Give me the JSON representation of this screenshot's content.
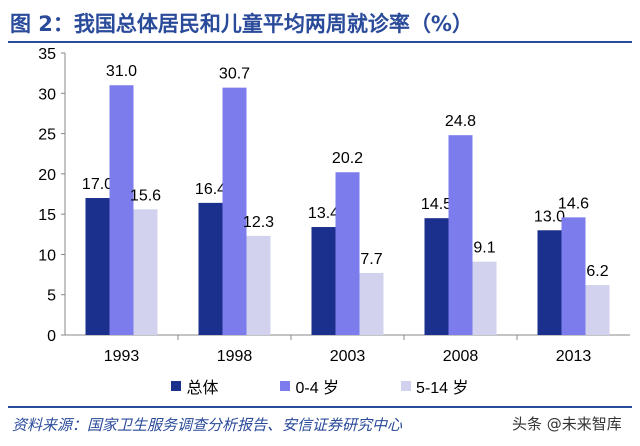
{
  "title": "图 2：我国总体居民和儿童平均两周就诊率（%）",
  "source": "资料来源：国家卫生服务调查分析报告、安信证券研究中心",
  "watermark": "头条 @未来智库",
  "chart_data": {
    "type": "bar",
    "title": "",
    "xlabel": "",
    "ylabel": "",
    "categories": [
      "1993",
      "1998",
      "2003",
      "2008",
      "2013"
    ],
    "ylim": [
      0,
      35
    ],
    "yticks": [
      0,
      5,
      10,
      15,
      20,
      25,
      30,
      35
    ],
    "grid": false,
    "legend_position": "bottom",
    "series": [
      {
        "name": "总体",
        "color": "#1b2f8c",
        "values": [
          17.0,
          16.4,
          13.4,
          14.5,
          13.0
        ]
      },
      {
        "name": "0-4 岁",
        "color": "#7c7cec",
        "values": [
          31.0,
          30.7,
          20.2,
          24.8,
          14.6
        ]
      },
      {
        "name": "5-14 岁",
        "color": "#d2d2ee",
        "values": [
          15.6,
          12.3,
          7.7,
          9.1,
          6.2
        ]
      }
    ]
  }
}
